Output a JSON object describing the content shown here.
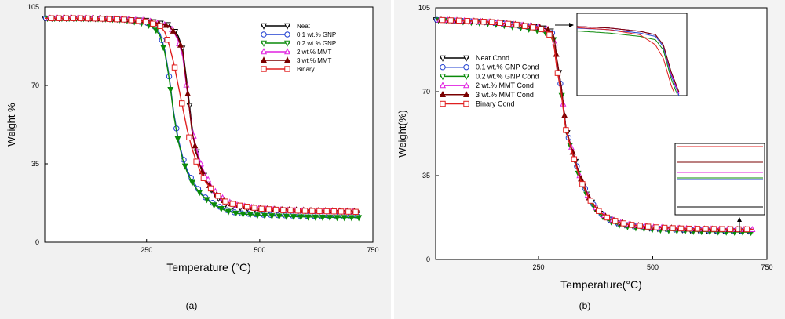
{
  "chart_data": [
    {
      "type": "line",
      "caption": "(a)",
      "xlabel": "Temperature (°C)",
      "ylabel": "Weight %",
      "xlim": [
        25,
        750
      ],
      "ylim": [
        0,
        105
      ],
      "xticks": [
        250,
        500,
        750
      ],
      "yticks": [
        0,
        35,
        70,
        105
      ],
      "tick_labels_x": [
        "250",
        "500",
        "750"
      ],
      "tick_labels_y": [
        "0",
        "35",
        "70",
        "105"
      ],
      "grid": false,
      "legend_position": "top-right",
      "series": [
        {
          "name": "Neat",
          "color": "#000000",
          "marker": "triangle-down",
          "x": [
            25,
            100,
            150,
            200,
            250,
            300,
            310,
            320,
            330,
            340,
            350,
            360,
            370,
            380,
            400,
            425,
            450,
            500,
            550,
            600,
            650,
            700,
            720
          ],
          "y": [
            100,
            100,
            99.8,
            99.5,
            99,
            97,
            95,
            92,
            86,
            70,
            52,
            41,
            34,
            28,
            21,
            17,
            15.5,
            14.5,
            14,
            13.5,
            13.3,
            13.2,
            13.2
          ]
        },
        {
          "name": "0.1 wt.% GNP",
          "color": "#1f3fd0",
          "marker": "circle",
          "x": [
            25,
            100,
            150,
            200,
            250,
            270,
            280,
            290,
            300,
            310,
            320,
            330,
            340,
            350,
            360,
            370,
            380,
            400,
            425,
            450,
            500,
            550,
            600,
            650,
            700,
            720
          ],
          "y": [
            100,
            100,
            99.8,
            99.4,
            98,
            96,
            93,
            86,
            74,
            58,
            46,
            38,
            32,
            28,
            25,
            22,
            20,
            17,
            14.5,
            13,
            12.3,
            12,
            11.8,
            11.6,
            11.5,
            11.5
          ]
        },
        {
          "name": "0.2 wt.% GNP",
          "color": "#0a8a0a",
          "marker": "triangle-down",
          "x": [
            25,
            100,
            150,
            200,
            250,
            270,
            280,
            290,
            300,
            310,
            320,
            330,
            340,
            350,
            360,
            370,
            380,
            400,
            425,
            450,
            500,
            550,
            600,
            650,
            700,
            720
          ],
          "y": [
            100,
            100,
            99.8,
            99.3,
            97.5,
            95,
            92,
            85,
            73,
            57,
            45,
            37,
            31,
            27,
            24,
            21.5,
            19.5,
            16.5,
            14,
            12.8,
            12,
            11.6,
            11.3,
            11.1,
            11,
            11
          ]
        },
        {
          "name": "2 wt.% MMT",
          "color": "#e020e0",
          "marker": "triangle-up",
          "x": [
            25,
            100,
            150,
            200,
            250,
            300,
            310,
            320,
            330,
            340,
            350,
            360,
            370,
            380,
            400,
            425,
            450,
            500,
            550,
            600,
            650,
            700,
            720
          ],
          "y": [
            100,
            100,
            99.8,
            99.5,
            99,
            96.5,
            94,
            90,
            83,
            67,
            51,
            42,
            35,
            30,
            23,
            18.5,
            16.5,
            15,
            14.3,
            14,
            13.8,
            13.6,
            13.6
          ]
        },
        {
          "name": "3 wt.% MMT",
          "color": "#7a0000",
          "marker": "triangle-up",
          "x": [
            25,
            100,
            150,
            200,
            250,
            300,
            310,
            320,
            330,
            340,
            350,
            360,
            370,
            380,
            400,
            425,
            450,
            500,
            550,
            600,
            650,
            700,
            720
          ],
          "y": [
            100,
            100,
            99.8,
            99.5,
            99,
            96.5,
            94,
            91,
            85,
            68,
            50,
            40,
            33,
            28,
            22,
            18,
            16.3,
            15,
            14.5,
            14.2,
            14,
            13.8,
            13.8
          ]
        },
        {
          "name": "Binary",
          "color": "#e02020",
          "marker": "square",
          "x": [
            25,
            100,
            150,
            200,
            250,
            280,
            290,
            300,
            310,
            320,
            330,
            340,
            350,
            360,
            370,
            380,
            400,
            425,
            450,
            500,
            550,
            600,
            650,
            700,
            720
          ],
          "y": [
            100,
            100,
            99.8,
            99.4,
            98.5,
            96.5,
            94,
            88,
            80,
            70,
            60,
            50,
            42,
            36,
            31,
            27,
            22,
            18,
            16.5,
            15,
            14.3,
            14,
            13.8,
            13.6,
            13.5
          ]
        }
      ]
    },
    {
      "type": "line",
      "caption": "(b)",
      "xlabel": "Temperature(°C)",
      "ylabel": "Weight(%)",
      "xlim": [
        25,
        750
      ],
      "ylim": [
        0,
        105
      ],
      "xticks": [
        250,
        500,
        750
      ],
      "yticks": [
        0,
        35,
        70,
        105
      ],
      "tick_labels_x": [
        "250",
        "500",
        "750"
      ],
      "tick_labels_y": [
        "0",
        "35",
        "70",
        "105"
      ],
      "grid": false,
      "legend_position": "top-left",
      "insets": [
        "zoom of onset region (top)",
        "zoom of residue region (bottom right)"
      ],
      "series": [
        {
          "name": "Neat Cond",
          "color": "#000000",
          "marker": "triangle-down",
          "x": [
            25,
            100,
            150,
            200,
            250,
            270,
            280,
            285,
            290,
            300,
            310,
            320,
            340,
            360,
            380,
            400,
            425,
            450,
            500,
            550,
            600,
            650,
            700,
            720
          ],
          "y": [
            100,
            99.5,
            99,
            98,
            97,
            96,
            95,
            92,
            84,
            72,
            55,
            48,
            35,
            26,
            20,
            17,
            15,
            14,
            13,
            12.5,
            12,
            12,
            12,
            11.8
          ]
        },
        {
          "name": "0.1 wt.% GNP Cond",
          "color": "#1f3fd0",
          "marker": "circle",
          "x": [
            25,
            100,
            150,
            200,
            250,
            270,
            280,
            285,
            290,
            300,
            310,
            320,
            340,
            360,
            380,
            400,
            425,
            450,
            500,
            550,
            600,
            650,
            700,
            720
          ],
          "y": [
            100,
            99.4,
            98.8,
            97.6,
            96.5,
            95.5,
            94.5,
            91.5,
            83,
            71,
            55,
            48,
            35,
            26,
            20,
            17,
            15,
            14,
            13,
            12.5,
            12.2,
            12,
            12,
            12
          ]
        },
        {
          "name": "0.2 wt.% GNP Cond",
          "color": "#0a8a0a",
          "marker": "triangle-down",
          "x": [
            25,
            100,
            150,
            200,
            250,
            270,
            280,
            285,
            290,
            300,
            310,
            320,
            340,
            360,
            380,
            400,
            425,
            450,
            500,
            550,
            600,
            650,
            700,
            720
          ],
          "y": [
            100,
            99,
            98.3,
            97,
            95.5,
            94.5,
            93.5,
            90.5,
            82,
            70,
            54,
            47,
            34,
            25,
            19.5,
            16.5,
            14.5,
            13.5,
            12.5,
            12,
            11.7,
            11.5,
            11.4,
            11.3
          ]
        },
        {
          "name": "2 wt.% MMT Cond",
          "color": "#e020e0",
          "marker": "triangle-up",
          "x": [
            25,
            100,
            150,
            200,
            250,
            270,
            280,
            285,
            290,
            300,
            310,
            320,
            340,
            360,
            380,
            400,
            425,
            450,
            500,
            550,
            600,
            650,
            700,
            720
          ],
          "y": [
            100,
            99.5,
            99,
            98,
            97,
            96,
            95,
            92,
            83.5,
            71.5,
            55,
            48,
            35,
            26,
            20.5,
            17.5,
            15.5,
            14.5,
            13.5,
            13,
            12.8,
            12.6,
            12.5,
            12.5
          ]
        },
        {
          "name": "3 wt.% MMT Cond",
          "color": "#7a0000",
          "marker": "triangle-up",
          "x": [
            25,
            100,
            150,
            200,
            250,
            270,
            280,
            285,
            290,
            300,
            310,
            320,
            340,
            360,
            380,
            400,
            425,
            450,
            500,
            550,
            600,
            650,
            700,
            720
          ],
          "y": [
            100,
            99.5,
            99,
            98,
            97,
            96,
            95,
            92,
            84,
            72,
            55,
            48,
            35,
            26,
            20.5,
            17.5,
            15.5,
            14.5,
            13.5,
            13,
            12.7,
            12.6,
            12.5,
            12.5
          ]
        },
        {
          "name": "Binary Cond",
          "color": "#e02020",
          "marker": "square",
          "x": [
            25,
            100,
            150,
            200,
            250,
            270,
            280,
            285,
            290,
            300,
            310,
            320,
            340,
            360,
            380,
            400,
            425,
            450,
            500,
            550,
            600,
            650,
            700,
            720
          ],
          "y": [
            100,
            99.5,
            99,
            98,
            96.5,
            95,
            92,
            88,
            80,
            69,
            54,
            47,
            34,
            25.5,
            20.5,
            17.5,
            15.5,
            14.5,
            13.5,
            13,
            12.8,
            12.7,
            12.6,
            12.6
          ]
        }
      ]
    }
  ]
}
